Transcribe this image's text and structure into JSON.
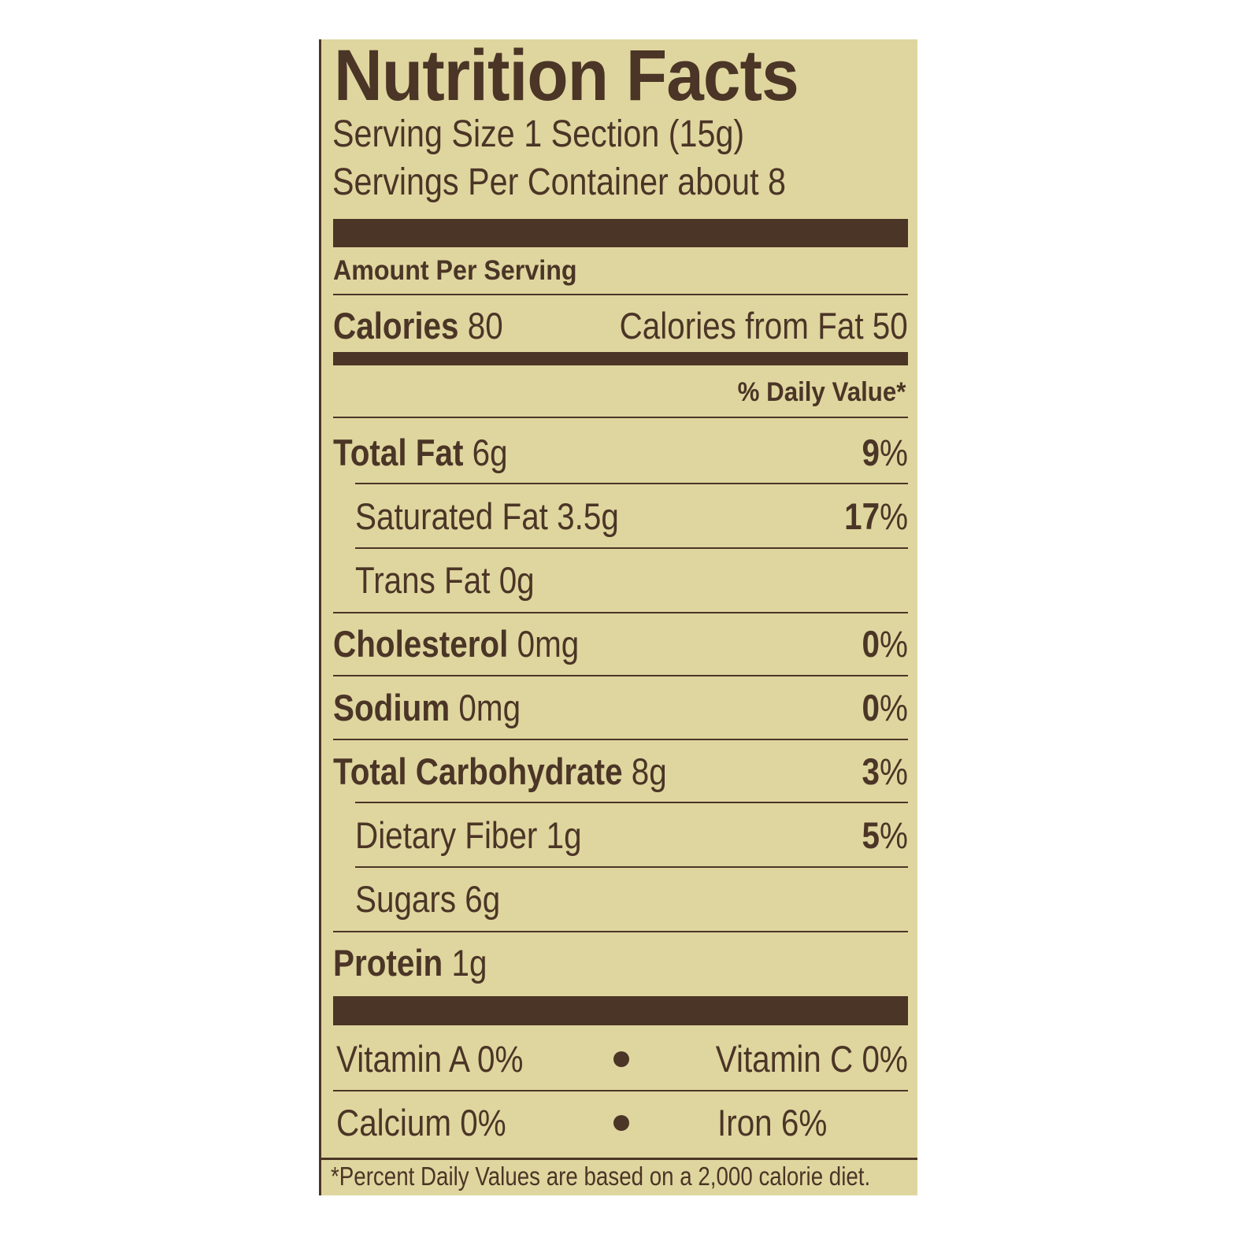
{
  "label": {
    "title": "Nutrition Facts",
    "serving_size": "Serving Size 1 Section (15g)",
    "servings_per_container": "Servings Per Container about 8",
    "amount_per_serving": "Amount Per Serving",
    "calories_label": "Calories",
    "calories_value": "80",
    "calories_from_fat": "Calories from Fat 50",
    "daily_value_header": "% Daily Value*",
    "nutrients": [
      {
        "name": "Total Fat",
        "amount": "6g",
        "dv": "9",
        "pct": "%"
      },
      {
        "name": "Saturated Fat",
        "amount": "3.5g",
        "dv": "17",
        "pct": "%"
      },
      {
        "name": "Trans Fat",
        "amount": "0g",
        "dv": "",
        "pct": ""
      },
      {
        "name": "Cholesterol",
        "amount": "0mg",
        "dv": "0",
        "pct": "%"
      },
      {
        "name": "Sodium",
        "amount": "0mg",
        "dv": "0",
        "pct": "%"
      },
      {
        "name": "Total Carbohydrate",
        "amount": "8g",
        "dv": "3",
        "pct": "%"
      },
      {
        "name": "Dietary Fiber",
        "amount": "1g",
        "dv": "5",
        "pct": "%"
      },
      {
        "name": "Sugars",
        "amount": "6g",
        "dv": "",
        "pct": ""
      },
      {
        "name": "Protein",
        "amount": "1g",
        "dv": "",
        "pct": ""
      }
    ],
    "vitamins": {
      "vitamin_a": "Vitamin A 0%",
      "vitamin_c": "Vitamin C 0%",
      "calcium": "Calcium 0%",
      "iron": "Iron 6%"
    },
    "footnote": "*Percent Daily Values are based on a 2,000 calorie diet.",
    "colors": {
      "background": "#dfd69f",
      "ink": "#4b3526"
    }
  }
}
